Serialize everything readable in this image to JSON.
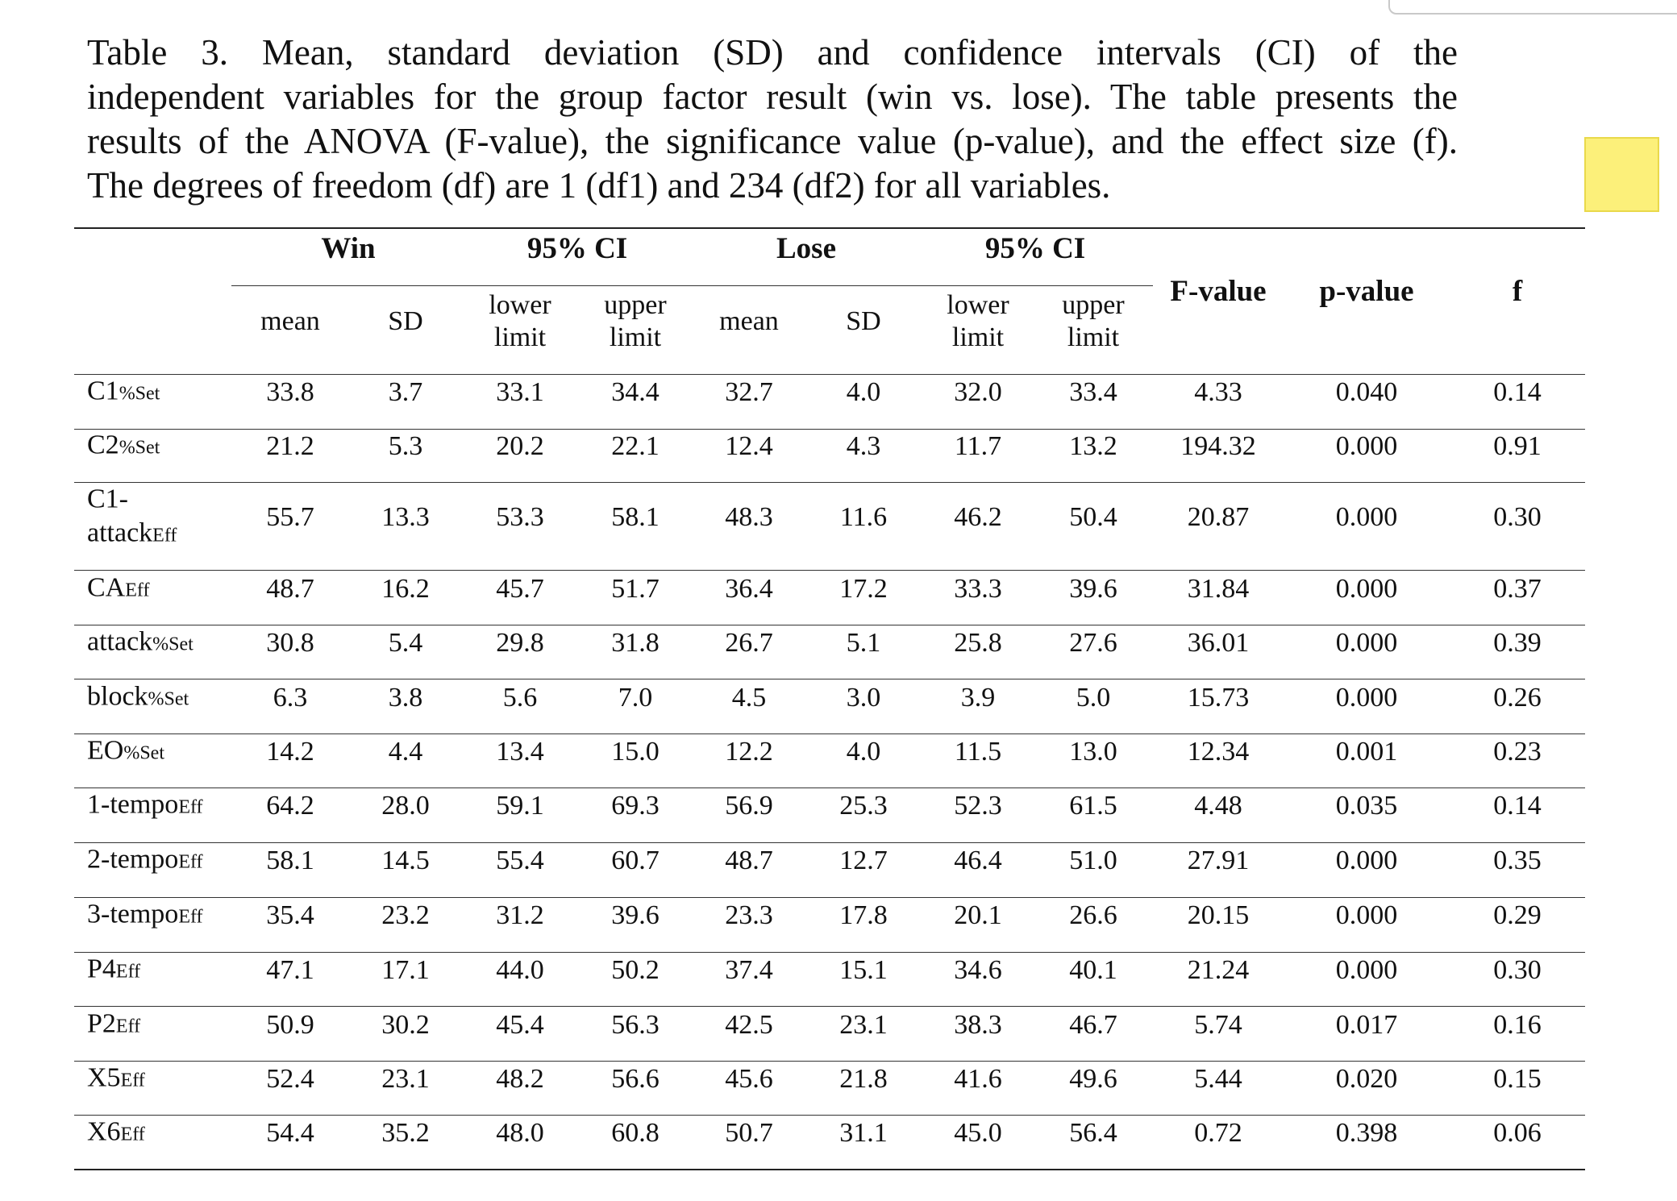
{
  "caption_lines": [
    "Table 3. Mean, standard deviation (SD) and confidence intervals (CI) of the",
    "independent variables for the group factor result (win vs. lose). The table presents the",
    "results of the ANOVA (F-value), the significance value (p-value), and the effect size (f).",
    "The degrees of freedom (df) are 1 (df1) and 234 (df2) for all variables."
  ],
  "header": {
    "groups": [
      "Win",
      "95% CI",
      "Lose",
      "95% CI"
    ],
    "stats": [
      "F-value",
      "p-value",
      "f"
    ],
    "subcolumns": [
      [
        "mean"
      ],
      [
        "SD"
      ],
      [
        "lower",
        "limit"
      ],
      [
        "upper",
        "limit"
      ],
      [
        "mean"
      ],
      [
        "SD"
      ],
      [
        "lower",
        "limit"
      ],
      [
        "upper",
        "limit"
      ]
    ]
  },
  "rows": [
    {
      "label": "C1",
      "suffix": "%Set",
      "values": [
        "33.8",
        "3.7",
        "33.1",
        "34.4",
        "32.7",
        "4.0",
        "32.0",
        "33.4",
        "4.33",
        "0.040",
        "0.14"
      ]
    },
    {
      "label": "C2",
      "suffix": "%Set",
      "values": [
        "21.2",
        "5.3",
        "20.2",
        "22.1",
        "12.4",
        "4.3",
        "11.7",
        "13.2",
        "194.32",
        "0.000",
        "0.91"
      ]
    },
    {
      "label": "C1-",
      "label2": "attack",
      "suffix": "Eff",
      "values": [
        "55.7",
        "13.3",
        "53.3",
        "58.1",
        "48.3",
        "11.6",
        "46.2",
        "50.4",
        "20.87",
        "0.000",
        "0.30"
      ]
    },
    {
      "label": "CA",
      "suffix": "Eff",
      "values": [
        "48.7",
        "16.2",
        "45.7",
        "51.7",
        "36.4",
        "17.2",
        "33.3",
        "39.6",
        "31.84",
        "0.000",
        "0.37"
      ]
    },
    {
      "label": "attack",
      "suffix": "%Set",
      "values": [
        "30.8",
        "5.4",
        "29.8",
        "31.8",
        "26.7",
        "5.1",
        "25.8",
        "27.6",
        "36.01",
        "0.000",
        "0.39"
      ]
    },
    {
      "label": "block",
      "suffix": "%Set",
      "values": [
        "6.3",
        "3.8",
        "5.6",
        "7.0",
        "4.5",
        "3.0",
        "3.9",
        "5.0",
        "15.73",
        "0.000",
        "0.26"
      ]
    },
    {
      "label": "EO",
      "suffix": "%Set",
      "values": [
        "14.2",
        "4.4",
        "13.4",
        "15.0",
        "12.2",
        "4.0",
        "11.5",
        "13.0",
        "12.34",
        "0.001",
        "0.23"
      ]
    },
    {
      "label": "1-tempo",
      "suffix": "Eff",
      "values": [
        "64.2",
        "28.0",
        "59.1",
        "69.3",
        "56.9",
        "25.3",
        "52.3",
        "61.5",
        "4.48",
        "0.035",
        "0.14"
      ]
    },
    {
      "label": "2-tempo",
      "suffix": "Eff",
      "values": [
        "58.1",
        "14.5",
        "55.4",
        "60.7",
        "48.7",
        "12.7",
        "46.4",
        "51.0",
        "27.91",
        "0.000",
        "0.35"
      ]
    },
    {
      "label": "3-tempo",
      "suffix": "Eff",
      "values": [
        "35.4",
        "23.2",
        "31.2",
        "39.6",
        "23.3",
        "17.8",
        "20.1",
        "26.6",
        "20.15",
        "0.000",
        "0.29"
      ]
    },
    {
      "label": "P4",
      "suffix": "Eff",
      "values": [
        "47.1",
        "17.1",
        "44.0",
        "50.2",
        "37.4",
        "15.1",
        "34.6",
        "40.1",
        "21.24",
        "0.000",
        "0.30"
      ]
    },
    {
      "label": "P2",
      "suffix": "Eff",
      "values": [
        "50.9",
        "30.2",
        "45.4",
        "56.3",
        "42.5",
        "23.1",
        "38.3",
        "46.7",
        "5.74",
        "0.017",
        "0.16"
      ]
    },
    {
      "label": "X5",
      "suffix": "Eff",
      "values": [
        "52.4",
        "23.1",
        "48.2",
        "56.6",
        "45.6",
        "21.8",
        "41.6",
        "49.6",
        "5.44",
        "0.020",
        "0.15"
      ]
    },
    {
      "label": "X6",
      "suffix": "Eff",
      "values": [
        "54.4",
        "35.2",
        "48.0",
        "60.8",
        "50.7",
        "31.1",
        "45.0",
        "56.4",
        "0.72",
        "0.398",
        "0.06"
      ]
    }
  ]
}
